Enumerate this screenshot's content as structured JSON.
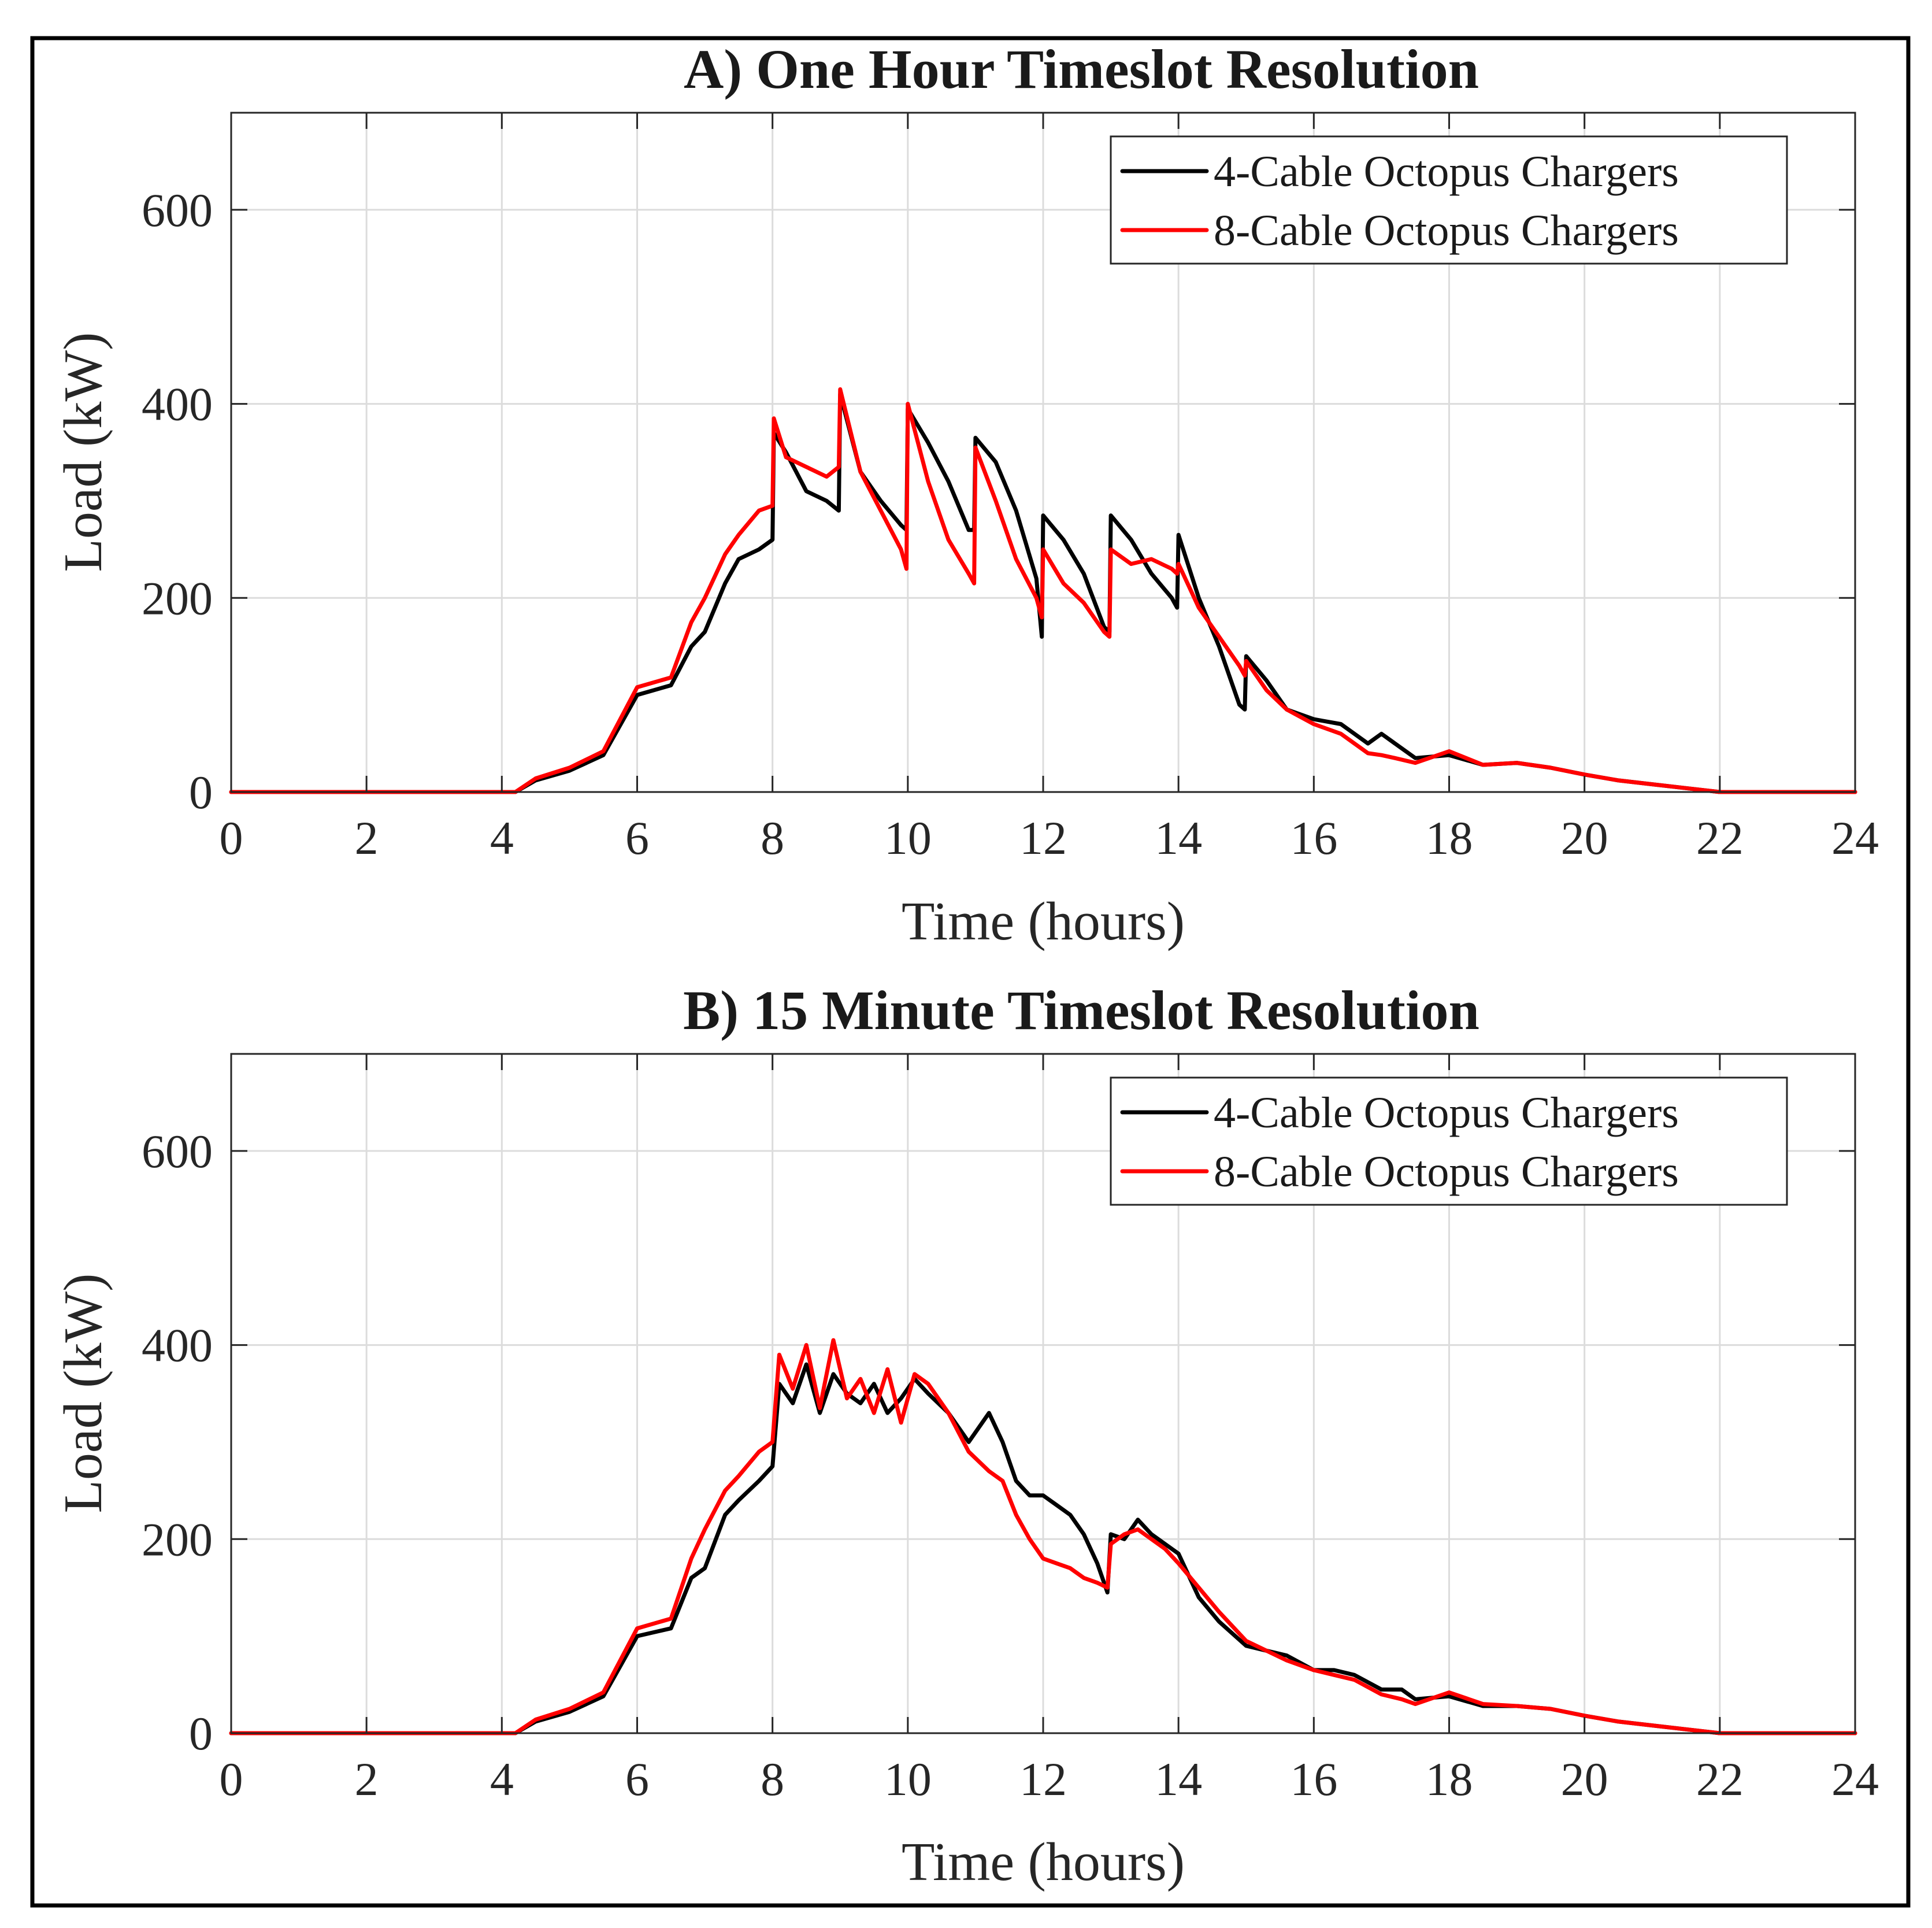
{
  "chart_data": [
    {
      "type": "line",
      "title": "A) One Hour Timeslot Resolution",
      "xlabel": "Time (hours)",
      "ylabel": "Load (kW)",
      "xlim": [
        0,
        24
      ],
      "ylim": [
        0,
        700
      ],
      "xticks": [
        0,
        2,
        4,
        6,
        8,
        10,
        12,
        14,
        16,
        18,
        20,
        22,
        24
      ],
      "yticks": [
        0,
        200,
        400,
        600
      ],
      "grid": true,
      "legend_position": "top-right",
      "series": [
        {
          "name": "4-Cable Octopus Chargers",
          "color": "#000000",
          "x": [
            0,
            4.2,
            4.5,
            5.0,
            5.5,
            6.0,
            6.5,
            6.8,
            7.0,
            7.3,
            7.5,
            7.8,
            8.0,
            8.02,
            8.2,
            8.5,
            8.8,
            8.98,
            9.0,
            9.3,
            9.6,
            9.9,
            9.98,
            10.0,
            10.3,
            10.6,
            10.9,
            10.98,
            11.0,
            11.3,
            11.6,
            11.9,
            11.98,
            12.0,
            12.3,
            12.6,
            12.9,
            12.98,
            13.0,
            13.3,
            13.6,
            13.9,
            13.98,
            14.0,
            14.3,
            14.6,
            14.9,
            14.98,
            15.0,
            15.3,
            15.6,
            16.0,
            16.4,
            16.8,
            17.0,
            17.2,
            17.5,
            18.0,
            18.5,
            19.0,
            19.5,
            20.0,
            20.5,
            21.0,
            21.5,
            22.0,
            24.0
          ],
          "y": [
            0,
            0,
            12,
            22,
            38,
            100,
            110,
            150,
            165,
            215,
            240,
            250,
            260,
            370,
            350,
            310,
            300,
            290,
            410,
            330,
            300,
            275,
            270,
            395,
            360,
            320,
            270,
            270,
            365,
            340,
            290,
            220,
            160,
            285,
            260,
            225,
            170,
            165,
            285,
            260,
            225,
            200,
            190,
            265,
            200,
            150,
            90,
            85,
            140,
            115,
            85,
            75,
            70,
            50,
            60,
            50,
            35,
            38,
            28,
            30,
            25,
            18,
            12,
            8,
            4,
            0,
            0
          ]
        },
        {
          "name": "8-Cable Octopus Chargers",
          "color": "#ff0000",
          "x": [
            0,
            4.2,
            4.5,
            5.0,
            5.5,
            6.0,
            6.5,
            6.8,
            7.0,
            7.3,
            7.5,
            7.8,
            8.0,
            8.02,
            8.2,
            8.5,
            8.8,
            8.98,
            9.0,
            9.3,
            9.6,
            9.9,
            9.98,
            10.0,
            10.3,
            10.6,
            10.9,
            10.98,
            11.0,
            11.3,
            11.6,
            11.9,
            11.98,
            12.0,
            12.3,
            12.6,
            12.9,
            12.98,
            13.0,
            13.3,
            13.6,
            13.9,
            13.98,
            14.0,
            14.3,
            14.6,
            14.9,
            14.98,
            15.0,
            15.3,
            15.6,
            16.0,
            16.4,
            16.8,
            17.0,
            17.2,
            17.5,
            18.0,
            18.5,
            19.0,
            19.5,
            20.0,
            20.5,
            21.0,
            21.5,
            22.0,
            24.0
          ],
          "y": [
            0,
            0,
            14,
            25,
            42,
            108,
            118,
            175,
            200,
            245,
            265,
            290,
            295,
            385,
            345,
            335,
            325,
            335,
            415,
            330,
            290,
            250,
            230,
            400,
            320,
            260,
            225,
            215,
            355,
            300,
            240,
            200,
            180,
            250,
            215,
            195,
            165,
            160,
            250,
            235,
            240,
            230,
            225,
            235,
            190,
            160,
            130,
            120,
            135,
            105,
            85,
            70,
            60,
            40,
            38,
            35,
            30,
            42,
            28,
            30,
            25,
            18,
            12,
            8,
            4,
            0,
            0
          ]
        }
      ]
    },
    {
      "type": "line",
      "title": "B) 15 Minute Timeslot Resolution",
      "xlabel": "Time (hours)",
      "ylabel": "Load (kW)",
      "xlim": [
        0,
        24
      ],
      "ylim": [
        0,
        700
      ],
      "xticks": [
        0,
        2,
        4,
        6,
        8,
        10,
        12,
        14,
        16,
        18,
        20,
        22,
        24
      ],
      "yticks": [
        0,
        200,
        400,
        600
      ],
      "grid": true,
      "legend_position": "top-right",
      "series": [
        {
          "name": "4-Cable Octopus Chargers",
          "color": "#000000",
          "x": [
            0,
            4.2,
            4.5,
            5.0,
            5.5,
            6.0,
            6.5,
            6.8,
            7.0,
            7.3,
            7.5,
            7.8,
            8.0,
            8.1,
            8.3,
            8.5,
            8.7,
            8.9,
            9.1,
            9.3,
            9.5,
            9.7,
            9.9,
            10.1,
            10.3,
            10.6,
            10.9,
            11.2,
            11.4,
            11.6,
            11.8,
            12.0,
            12.2,
            12.4,
            12.6,
            12.8,
            12.95,
            13.0,
            13.2,
            13.4,
            13.6,
            13.8,
            14.0,
            14.3,
            14.6,
            15.0,
            15.3,
            15.6,
            16.0,
            16.3,
            16.6,
            17.0,
            17.3,
            17.5,
            18.0,
            18.5,
            19.0,
            19.5,
            20.0,
            20.5,
            21.0,
            21.5,
            22.0,
            24.0
          ],
          "y": [
            0,
            0,
            12,
            22,
            38,
            100,
            108,
            160,
            170,
            225,
            240,
            260,
            275,
            360,
            340,
            380,
            330,
            370,
            350,
            340,
            360,
            330,
            345,
            365,
            350,
            330,
            300,
            330,
            300,
            260,
            245,
            245,
            235,
            225,
            205,
            175,
            145,
            205,
            200,
            220,
            205,
            195,
            185,
            140,
            115,
            90,
            85,
            80,
            65,
            65,
            60,
            45,
            45,
            35,
            38,
            28,
            28,
            25,
            18,
            12,
            8,
            4,
            0,
            0
          ]
        },
        {
          "name": "8-Cable Octopus Chargers",
          "color": "#ff0000",
          "x": [
            0,
            4.2,
            4.5,
            5.0,
            5.5,
            6.0,
            6.5,
            6.8,
            7.0,
            7.3,
            7.5,
            7.8,
            8.0,
            8.1,
            8.3,
            8.5,
            8.7,
            8.9,
            9.1,
            9.3,
            9.5,
            9.7,
            9.9,
            10.1,
            10.3,
            10.6,
            10.9,
            11.2,
            11.4,
            11.6,
            11.8,
            12.0,
            12.2,
            12.4,
            12.6,
            12.8,
            12.95,
            13.0,
            13.2,
            13.4,
            13.6,
            13.8,
            14.0,
            14.3,
            14.6,
            15.0,
            15.3,
            15.6,
            16.0,
            16.3,
            16.6,
            17.0,
            17.3,
            17.5,
            18.0,
            18.5,
            19.0,
            19.5,
            20.0,
            20.5,
            21.0,
            21.5,
            22.0,
            24.0
          ],
          "y": [
            0,
            0,
            14,
            25,
            42,
            108,
            118,
            180,
            210,
            250,
            265,
            290,
            300,
            390,
            355,
            400,
            335,
            405,
            345,
            365,
            330,
            375,
            320,
            370,
            360,
            330,
            290,
            270,
            260,
            225,
            200,
            180,
            175,
            170,
            160,
            155,
            150,
            195,
            205,
            210,
            200,
            190,
            175,
            150,
            125,
            95,
            85,
            75,
            65,
            60,
            55,
            40,
            35,
            30,
            42,
            30,
            28,
            25,
            18,
            12,
            8,
            4,
            0,
            0
          ]
        }
      ]
    }
  ]
}
